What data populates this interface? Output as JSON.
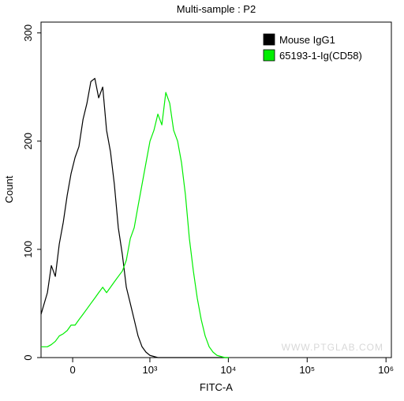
{
  "chart_data": {
    "type": "line",
    "title": "Multi-sample : P2",
    "x_label": "FITC-A",
    "y_label": "Count",
    "watermark": "WWW.PTGLAB.COM",
    "xscale": "biexponential",
    "legend": "top-right",
    "xlim": [
      -225,
      1170000
    ],
    "ylim": [
      0,
      310
    ],
    "xticks": [
      0,
      {
        "value": 1000,
        "label": "10³"
      },
      {
        "value": 10000,
        "label": "10⁴"
      },
      {
        "value": 100000,
        "label": "10⁵"
      },
      {
        "value": 1000000,
        "label": "10⁶"
      }
    ],
    "yticks": [
      0,
      100,
      200,
      300
    ],
    "x": [
      -225,
      -171,
      -141,
      -112,
      -85,
      -59,
      -34,
      -10,
      15,
      39,
      65,
      91,
      118,
      147,
      177,
      211,
      246,
      285,
      327,
      374,
      428,
      486,
      551,
      622,
      700,
      790,
      890,
      1003,
      1128,
      1268,
      1427,
      1603,
      1798,
      2018,
      2268,
      2544,
      2856,
      3200,
      3598,
      4030,
      4530,
      5080,
      5710,
      6400,
      7190,
      8060,
      9050,
      10150
    ],
    "series": [
      {
        "name": "Mouse IgG1",
        "color": "#000000",
        "values": [
          40,
          60,
          85,
          75,
          105,
          125,
          150,
          170,
          185,
          195,
          220,
          235,
          255,
          258,
          240,
          250,
          210,
          190,
          160,
          120,
          95,
          65,
          50,
          35,
          20,
          10,
          5,
          2,
          1,
          0,
          0,
          0,
          0,
          0,
          0,
          0,
          0,
          0,
          0,
          0,
          0,
          0,
          0,
          0,
          0,
          0,
          0,
          0
        ]
      },
      {
        "name": "65193-1-Ig(CD58)",
        "color": "#00ee00",
        "values": [
          10,
          10,
          12,
          15,
          20,
          22,
          25,
          30,
          30,
          35,
          40,
          45,
          50,
          55,
          60,
          65,
          60,
          65,
          70,
          75,
          80,
          90,
          110,
          120,
          140,
          160,
          180,
          200,
          210,
          225,
          215,
          245,
          235,
          210,
          200,
          180,
          150,
          110,
          80,
          55,
          35,
          20,
          10,
          5,
          2,
          1,
          0,
          0
        ]
      }
    ]
  }
}
